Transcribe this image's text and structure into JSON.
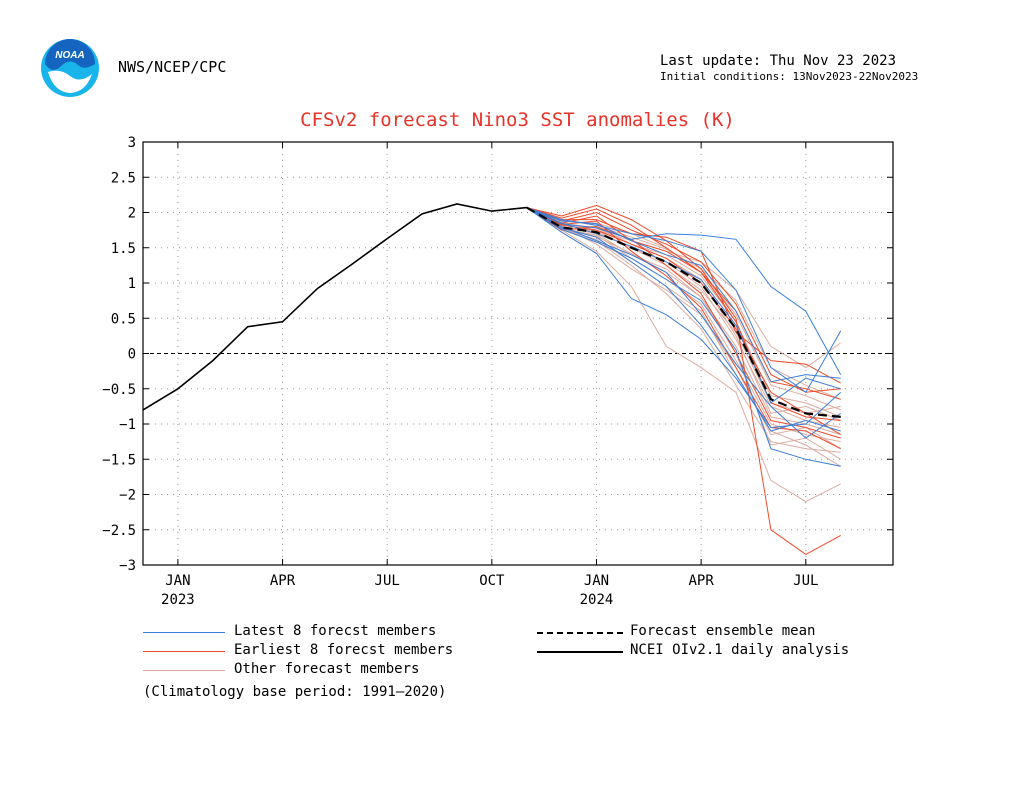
{
  "header": {
    "logo_text": "NOAA",
    "org": "NWS/NCEP/CPC",
    "last_update": "Last update: Thu Nov 23 2023",
    "initial_conditions": "Initial conditions: 13Nov2023-22Nov2023"
  },
  "colors": {
    "title": "#e8322a",
    "latest": "#3a7fd8",
    "earliest": "#ee4a2a",
    "other": "#dcaca0",
    "mean": "#000000",
    "observed": "#000000",
    "logo_outer": "#19b4ea",
    "logo_inner": "#1565c0"
  },
  "legend": {
    "latest": "Latest 8 forecst members",
    "earliest": "Earliest 8 forecst members",
    "other": "Other forecast members",
    "mean": "Forecast ensemble mean",
    "observed": "NCEI OIv2.1 daily analysis",
    "climatology": "(Climatology base period: 1991—2020)"
  },
  "chart_data": {
    "type": "line",
    "title": "CFSv2 forecast Nino3 SST anomalies (K)",
    "xlabel": "",
    "ylabel": "",
    "ylim": [
      -3,
      3
    ],
    "xlim": [
      -1,
      20.5
    ],
    "yticks": [
      3,
      2.5,
      2,
      1.5,
      1,
      0.5,
      0,
      -0.5,
      -1,
      -1.5,
      -2,
      -2.5,
      -3
    ],
    "ytick_labels": [
      "3",
      "2.5",
      "2",
      "1.5",
      "1",
      "0.5",
      "0",
      "−0.5",
      "−1",
      "−1.5",
      "−2",
      "−2.5",
      "−3"
    ],
    "xticks": [
      {
        "x": 0,
        "label": "JAN",
        "year": "2023"
      },
      {
        "x": 3,
        "label": "APR",
        "year": ""
      },
      {
        "x": 6,
        "label": "JUL",
        "year": ""
      },
      {
        "x": 9,
        "label": "OCT",
        "year": ""
      },
      {
        "x": 12,
        "label": "JAN",
        "year": "2024"
      },
      {
        "x": 15,
        "label": "APR",
        "year": ""
      },
      {
        "x": 18,
        "label": "JUL",
        "year": ""
      }
    ],
    "grid": true,
    "zero_line": true,
    "observed": {
      "x": [
        -1,
        0,
        1,
        2,
        3,
        4,
        5,
        6,
        7,
        8,
        9,
        10
      ],
      "y": [
        -0.8,
        -0.5,
        -0.1,
        0.38,
        0.45,
        0.92,
        1.27,
        1.63,
        1.98,
        2.12,
        2.02,
        2.07
      ]
    },
    "forecast_x": [
      10,
      11,
      12,
      13,
      14,
      15,
      16,
      17,
      18,
      19
    ],
    "ensemble_mean": [
      2.07,
      1.79,
      1.72,
      1.5,
      1.3,
      1.0,
      0.35,
      -0.65,
      -0.85,
      -0.9
    ],
    "latest_members": [
      [
        2.07,
        1.84,
        1.78,
        1.62,
        1.7,
        1.68,
        1.62,
        0.95,
        0.6,
        -0.3
      ],
      [
        2.07,
        1.76,
        1.58,
        1.35,
        1.05,
        0.75,
        0.05,
        -1.35,
        -1.5,
        -1.6
      ],
      [
        2.07,
        1.9,
        1.82,
        1.7,
        1.6,
        1.45,
        0.9,
        -0.2,
        -0.55,
        0.32
      ],
      [
        2.07,
        1.72,
        1.42,
        0.78,
        0.55,
        0.2,
        -0.35,
        -1.05,
        -1.0,
        -0.55
      ],
      [
        2.07,
        1.85,
        1.7,
        1.52,
        1.3,
        1.05,
        0.4,
        -0.7,
        -0.35,
        -0.5
      ],
      [
        2.07,
        1.8,
        1.6,
        1.4,
        1.15,
        0.55,
        -0.15,
        -0.75,
        -1.2,
        -0.85
      ],
      [
        2.07,
        1.88,
        1.84,
        1.6,
        1.4,
        1.25,
        0.6,
        -0.4,
        -0.3,
        -0.35
      ],
      [
        2.07,
        1.78,
        1.65,
        1.3,
        0.95,
        0.4,
        -0.3,
        -1.1,
        -0.95,
        -1.1
      ]
    ],
    "earliest_members": [
      [
        2.07,
        1.95,
        2.1,
        1.9,
        1.6,
        1.2,
        0.5,
        -2.5,
        -2.85,
        -2.58
      ],
      [
        2.07,
        1.9,
        1.9,
        1.7,
        1.65,
        1.45,
        0.3,
        -0.1,
        -0.15,
        -0.42
      ],
      [
        2.07,
        1.85,
        1.95,
        1.6,
        1.45,
        1.15,
        0.6,
        -0.4,
        -0.5,
        -0.65
      ],
      [
        2.07,
        1.82,
        1.75,
        1.55,
        1.35,
        1.0,
        0.35,
        -0.55,
        -0.85,
        -1.15
      ],
      [
        2.07,
        1.88,
        2.0,
        1.75,
        1.55,
        1.3,
        0.7,
        -0.3,
        -0.55,
        -0.5
      ],
      [
        2.07,
        1.75,
        1.8,
        1.62,
        1.25,
        0.85,
        0.0,
        -0.95,
        -1.05,
        -1.2
      ],
      [
        2.07,
        1.92,
        2.05,
        1.82,
        1.5,
        1.15,
        0.45,
        -0.7,
        -0.9,
        -0.95
      ],
      [
        2.07,
        1.83,
        1.88,
        1.45,
        1.1,
        0.65,
        -0.2,
        -1.05,
        -1.1,
        -1.35
      ]
    ],
    "other_members": [
      [
        2.07,
        1.75,
        1.45,
        0.95,
        0.1,
        -0.2,
        -0.55,
        -1.8,
        -2.1,
        -1.85
      ],
      [
        2.07,
        1.8,
        1.7,
        1.4,
        1.2,
        0.8,
        0.0,
        -1.3,
        -1.2,
        -1.5
      ],
      [
        2.07,
        1.86,
        1.75,
        1.6,
        1.45,
        1.3,
        0.9,
        0.1,
        -0.2,
        0.15
      ],
      [
        2.07,
        1.78,
        1.6,
        1.25,
        0.85,
        0.35,
        -0.45,
        -1.25,
        -1.35,
        -1.4
      ],
      [
        2.07,
        1.82,
        1.8,
        1.55,
        1.35,
        1.05,
        0.25,
        -0.85,
        -0.75,
        -0.95
      ],
      [
        2.07,
        1.88,
        1.85,
        1.7,
        1.5,
        1.15,
        0.55,
        -0.45,
        -0.6,
        -0.8
      ],
      [
        2.07,
        1.77,
        1.68,
        1.35,
        1.05,
        0.7,
        -0.1,
        -1.0,
        -1.15,
        -1.25
      ],
      [
        2.07,
        1.84,
        1.72,
        1.5,
        1.3,
        0.95,
        0.2,
        -0.75,
        -0.95,
        -1.05
      ],
      [
        2.07,
        1.8,
        1.55,
        1.2,
        0.9,
        0.55,
        -0.2,
        -1.15,
        -1.05,
        -1.35
      ],
      [
        2.07,
        1.9,
        1.82,
        1.65,
        1.48,
        1.2,
        0.75,
        -0.2,
        -0.45,
        -0.65
      ],
      [
        2.07,
        1.76,
        1.62,
        1.3,
        0.95,
        0.6,
        -0.3,
        -1.1,
        -1.3,
        -1.6
      ],
      [
        2.07,
        1.85,
        1.78,
        1.55,
        1.4,
        1.1,
        0.45,
        -0.6,
        -0.7,
        -0.9
      ],
      [
        2.07,
        1.79,
        1.66,
        1.42,
        1.15,
        0.8,
        0.1,
        -0.9,
        -1.0,
        -1.15
      ],
      [
        2.07,
        1.83,
        1.74,
        1.5,
        1.25,
        0.9,
        0.3,
        -0.7,
        -0.85,
        -0.75
      ]
    ]
  }
}
